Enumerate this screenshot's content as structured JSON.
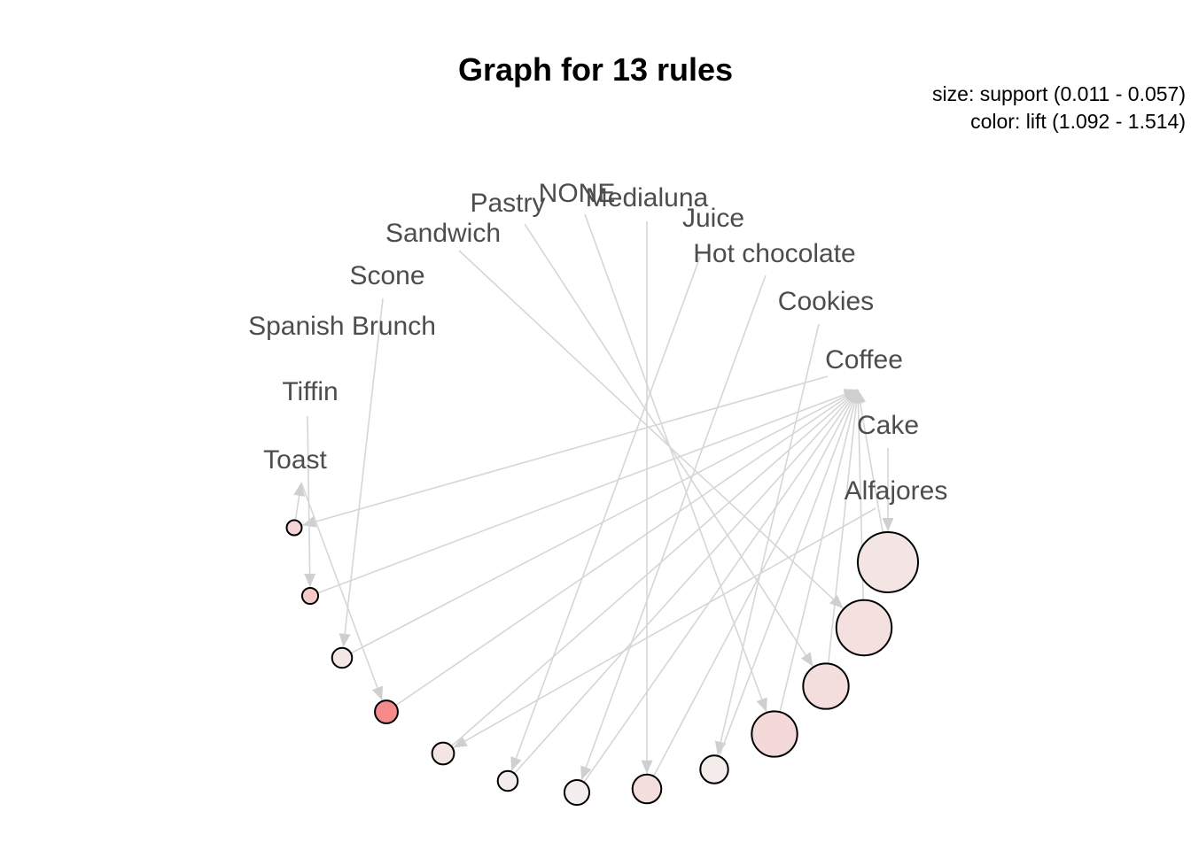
{
  "title": "Graph for 13 rules",
  "legend": {
    "size": "size: support (0.011 - 0.057)",
    "color": "color: lift (1.092 - 1.514)"
  },
  "colors": {
    "edge": "#d6d6d6",
    "low_lift": "#f3eeed",
    "high_lift": "#f58a8a"
  },
  "items": [
    "NONE",
    "Medialuna",
    "Pastry",
    "Juice",
    "Sandwich",
    "Hot chocolate",
    "Scone",
    "Cookies",
    "Spanish Brunch",
    "Coffee",
    "Tiffin",
    "Cake",
    "Toast",
    "Alfajores"
  ],
  "chart_data": {
    "type": "network",
    "size_measure": "support",
    "color_measure": "lift",
    "support_range": [
      0.011,
      0.057
    ],
    "lift_range": [
      1.092,
      1.514
    ],
    "rules": [
      {
        "lhs": [
          "Coffee"
        ],
        "rhs": "Toast",
        "support": 0.011,
        "lift": 1.2
      },
      {
        "lhs": [
          "Tiffin"
        ],
        "rhs": "Coffee",
        "support": 0.012,
        "lift": 1.25
      },
      {
        "lhs": [
          "Scone"
        ],
        "rhs": "Coffee",
        "support": 0.016,
        "lift": 1.12
      },
      {
        "lhs": [
          "Toast"
        ],
        "rhs": "Coffee",
        "support": 0.019,
        "lift": 1.514
      },
      {
        "lhs": [
          "Alfajores"
        ],
        "rhs": "Coffee",
        "support": 0.018,
        "lift": 1.13
      },
      {
        "lhs": [
          "Juice"
        ],
        "rhs": "Coffee",
        "support": 0.016,
        "lift": 1.1
      },
      {
        "lhs": [
          "Hot chocolate"
        ],
        "rhs": "Coffee",
        "support": 0.021,
        "lift": 1.092
      },
      {
        "lhs": [
          "Medialuna"
        ],
        "rhs": "Coffee",
        "support": 0.025,
        "lift": 1.16
      },
      {
        "lhs": [
          "Cookies"
        ],
        "rhs": "Coffee",
        "support": 0.024,
        "lift": 1.1
      },
      {
        "lhs": [
          "NONE"
        ],
        "rhs": "Coffee",
        "support": 0.042,
        "lift": 1.18
      },
      {
        "lhs": [
          "Pastry"
        ],
        "rhs": "Coffee",
        "support": 0.042,
        "lift": 1.16
      },
      {
        "lhs": [
          "Sandwich"
        ],
        "rhs": "Coffee",
        "support": 0.052,
        "lift": 1.15
      },
      {
        "lhs": [
          "Cake"
        ],
        "rhs": "Coffee",
        "support": 0.057,
        "lift": 1.13
      }
    ]
  }
}
